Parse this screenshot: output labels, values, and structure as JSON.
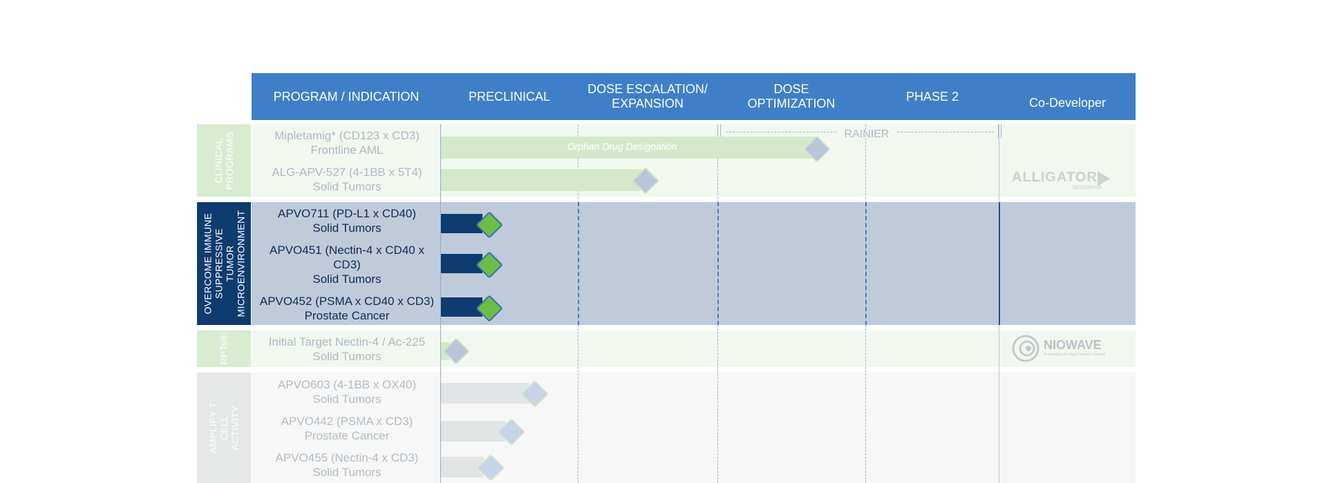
{
  "header": {
    "program": "PROGRAM / INDICATION",
    "preclinical": "PRECLINICAL",
    "dose_escalation": "DOSE ESCALATION/ EXPANSION",
    "dose_optimization": "DOSE OPTIMIZATION",
    "phase2": "PHASE 2",
    "co_developer": "Co-Developer"
  },
  "groups": {
    "clinical": "CLINICAL PROGRAMS",
    "overcome": "OVERCOME IMMUNE SUPPRESSIVE TUMOR MICROENVIRONMENT",
    "rpts": "RPTs®",
    "amplify": "AMPLIFY T CELL ACTIVITY"
  },
  "programs": [
    {
      "name": "Mipletamig* (CD123 x CD3)",
      "indication": "Frontline AML"
    },
    {
      "name": "ALG-APV-527 (4-1BB x 5T4)",
      "indication": "Solid Tumors"
    },
    {
      "name": "APVO711 (PD-L1 x CD40)",
      "indication": "Solid Tumors"
    },
    {
      "name": "APVO451 (Nectin-4 x CD40 x CD3)",
      "indication": "Solid Tumors"
    },
    {
      "name": "APVO452 (PSMA x CD40 x CD3)",
      "indication": "Prostate Cancer"
    },
    {
      "name": "Initial Target Nectin-4 / Ac-225",
      "indication": "Solid Tumors"
    },
    {
      "name": "APVO603 (4-1BB x OX40)",
      "indication": "Solid Tumors"
    },
    {
      "name": "APVO442 (PSMA x CD3)",
      "indication": "Prostate Cancer"
    },
    {
      "name": "APVO455 (Nectin-4 x CD3)",
      "indication": "Solid Tumors"
    }
  ],
  "annotations": {
    "orphan": "Orphan Drug Designation",
    "rainier": "RAINIER"
  },
  "co_developers": {
    "alligator_main": "ALLIGATOR",
    "alligator_sub": "bioscience",
    "niowave": "NIOWAVE",
    "niowave_sub": "Accelerating the Right Isotopes Forward"
  },
  "colors": {
    "header": "#3f7fc8",
    "clinical_band": "#f2f8ef",
    "overcome_band": "#bfcbdb",
    "amplify_band": "#f6f7f6",
    "navy": "#0e3c70",
    "green_diamond": "#6cbd45"
  }
}
